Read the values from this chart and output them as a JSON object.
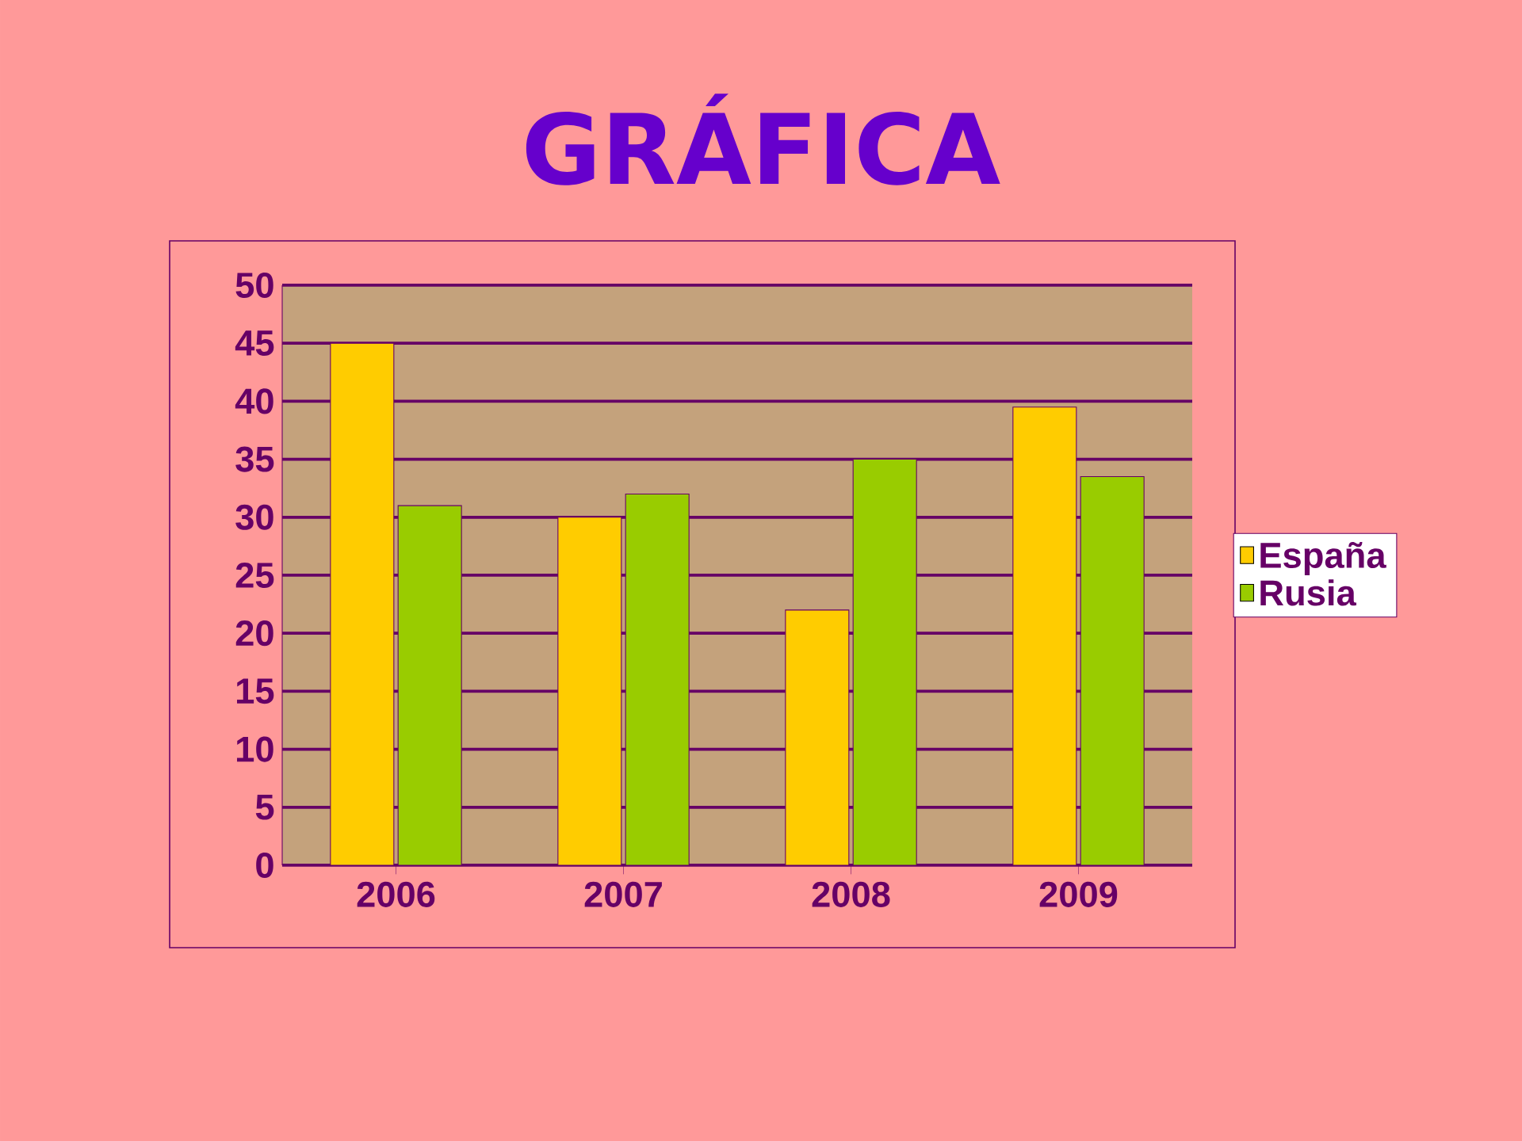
{
  "chart_data": {
    "type": "bar",
    "title": "GRÁFICA",
    "categories": [
      "2006",
      "2007",
      "2008",
      "2009"
    ],
    "series": [
      {
        "name": "España",
        "color": "#ffcc00",
        "values": [
          45,
          30,
          22,
          39.5
        ]
      },
      {
        "name": "Rusia",
        "color": "#99cc00",
        "values": [
          31,
          32,
          35,
          33.5
        ]
      }
    ],
    "ylim": [
      0,
      50
    ],
    "yticks": [
      0,
      5,
      10,
      15,
      20,
      25,
      30,
      35,
      40,
      45,
      50
    ],
    "grid": "y",
    "legend": "right"
  }
}
